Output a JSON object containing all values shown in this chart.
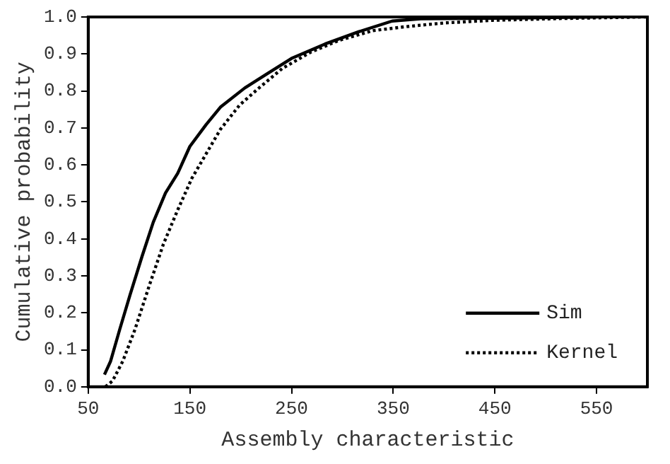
{
  "chart_data": {
    "type": "line",
    "xlabel": "Assembly characteristic",
    "ylabel": "Cumulative probability",
    "xlim": [
      50,
      600
    ],
    "xticks": [
      50,
      150,
      250,
      350,
      450,
      550
    ],
    "ylim": [
      0,
      1
    ],
    "yticks": [
      {
        "value": 0,
        "label": "0.0"
      },
      0.1,
      0.2,
      0.3,
      0.4,
      0.5,
      0.6,
      0.7,
      0.8,
      0.9,
      {
        "value": 1,
        "label": "1.0"
      }
    ],
    "grid": false,
    "legend": "bottom right",
    "marker": "none",
    "series": [
      {
        "name": "Sim",
        "color": "#000000",
        "line_style": "solid",
        "x": [
          66,
          72,
          81,
          91,
          103,
          114,
          126,
          138,
          150,
          166,
          180,
          204,
          227,
          250,
          283,
          316,
          349,
          377,
          471,
          551
        ],
        "values": [
          0.033,
          0.069,
          0.155,
          0.247,
          0.353,
          0.445,
          0.524,
          0.577,
          0.65,
          0.709,
          0.756,
          0.808,
          0.848,
          0.888,
          0.927,
          0.96,
          0.989,
          0.995,
          0.997,
          1.0
        ]
      },
      {
        "name": "Kernel",
        "color": "#000000",
        "line_style": "dotted",
        "x": [
          67,
          74,
          84,
          96,
          110,
          124,
          138,
          152,
          166,
          180,
          199,
          218,
          241,
          269,
          297,
          330,
          363,
          401,
          448,
          518,
          600
        ],
        "values": [
          0,
          0.016,
          0.069,
          0.155,
          0.273,
          0.386,
          0.478,
          0.564,
          0.63,
          0.696,
          0.762,
          0.808,
          0.861,
          0.905,
          0.937,
          0.963,
          0.974,
          0.984,
          0.991,
          0.996,
          1.0
        ]
      }
    ]
  }
}
